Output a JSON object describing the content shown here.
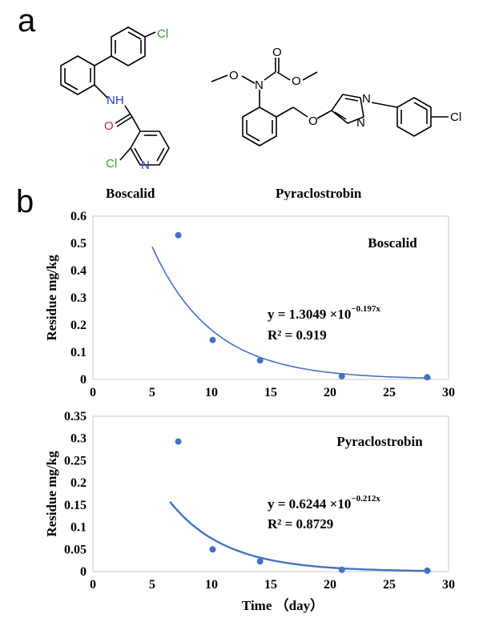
{
  "panel_labels": {
    "a": "a",
    "b": "b"
  },
  "structures": {
    "boscalid": {
      "name": "Boscalid",
      "atoms": {
        "cl_top": "Cl",
        "nh": "NH",
        "o": "O",
        "cl_bottom": "Cl",
        "n": "N"
      }
    },
    "pyraclostrobin": {
      "name": "Pyraclostrobin",
      "atoms": {
        "o_carbonyl": "O",
        "o_methoxy": "O",
        "n_amide": "N",
        "o_ester": "O",
        "o_ether": "O",
        "n_ring": "N",
        "n1": "N",
        "cl": "Cl"
      }
    }
  },
  "colors": {
    "series": "#4472C4",
    "chlorine": "#2ca02c",
    "oxygen": "#d62728",
    "nitrogen": "#1f3fbf"
  },
  "chart_data": [
    {
      "type": "scatter",
      "title": "Boscalid",
      "ylabel": "Residue  mg/kg",
      "xlabel": "",
      "xlim": [
        0,
        30
      ],
      "ylim": [
        0,
        0.6
      ],
      "xticks": [
        "0",
        "5",
        "10",
        "15",
        "20",
        "25",
        "30"
      ],
      "yticks": [
        "0",
        "0.1",
        "0.2",
        "0.3",
        "0.4",
        "0.5",
        "0.6"
      ],
      "x": [
        7.2,
        10.1,
        14.1,
        21.0,
        28.2
      ],
      "y": [
        0.53,
        0.145,
        0.07,
        0.012,
        0.008
      ],
      "fit": {
        "type": "exponential",
        "a": 1.3049,
        "b": -0.197,
        "x_range": [
          5,
          28.5
        ]
      },
      "equation": {
        "prefix": "y = 1.3049 ×10",
        "exponent": "−0.197x"
      },
      "r2": "R² = 0.919"
    },
    {
      "type": "scatter",
      "title": "Pyraclostrobin",
      "ylabel": "Residue  mg/kg",
      "xlabel": "Time （day）",
      "xlim": [
        0,
        30
      ],
      "ylim": [
        0,
        0.35
      ],
      "xticks": [
        "0",
        "5",
        "10",
        "15",
        "20",
        "25",
        "30"
      ],
      "yticks": [
        "0",
        "0.05",
        "0.1",
        "0.15",
        "0.2",
        "0.25",
        "0.3",
        "0.35"
      ],
      "x": [
        7.2,
        10.1,
        14.1,
        21.0,
        28.2
      ],
      "y": [
        0.293,
        0.05,
        0.023,
        0.004,
        0.002
      ],
      "fit": {
        "type": "exponential",
        "a": 0.6244,
        "b": -0.212,
        "x_range": [
          6.5,
          28.5
        ]
      },
      "equation": {
        "prefix": "y = 0.6244 ×10",
        "exponent": "−0.212x"
      },
      "r2": "R² = 0.8729"
    }
  ]
}
